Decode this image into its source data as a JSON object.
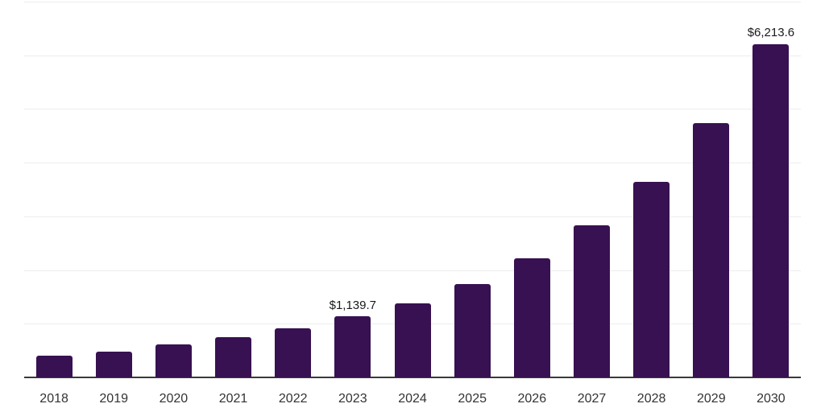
{
  "chart_data": {
    "type": "bar",
    "title": "",
    "xlabel": "",
    "ylabel": "",
    "categories": [
      "2018",
      "2019",
      "2020",
      "2021",
      "2022",
      "2023",
      "2024",
      "2025",
      "2026",
      "2027",
      "2028",
      "2029",
      "2030"
    ],
    "values": [
      410,
      475,
      610,
      748,
      915,
      1139.7,
      1385,
      1745,
      2225,
      2830,
      3645,
      4740,
      6213.6
    ],
    "value_labels": [
      {
        "category": "2023",
        "text": "$1,139.7"
      },
      {
        "category": "2030",
        "text": "$6,213.6"
      }
    ],
    "ylim": [
      0,
      7000
    ],
    "gridline_step": 1000,
    "grid": true,
    "legend": false,
    "y_axis_labels_visible": false,
    "colors": {
      "bar": "#371151",
      "gridline": "#ededed",
      "axis": "#3a3a3a",
      "tick_label": "#333333",
      "value_label": "#1a1a1a",
      "background": "#ffffff"
    }
  }
}
